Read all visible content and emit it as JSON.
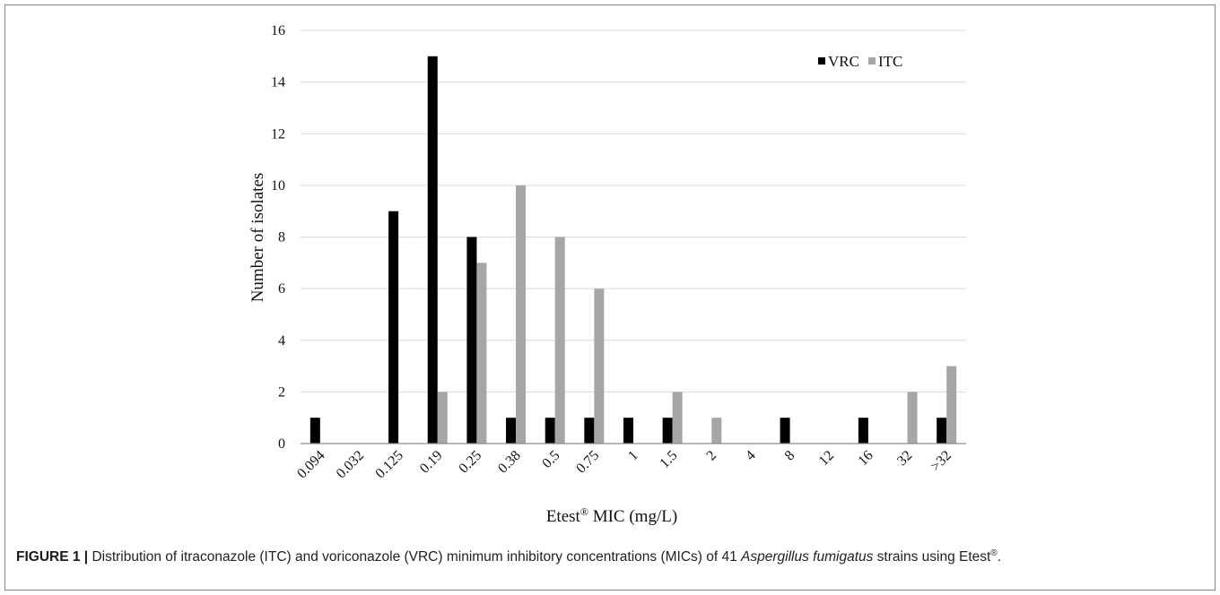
{
  "chart_data": {
    "type": "bar",
    "categories": [
      "0.094",
      "0.032",
      "0.125",
      "0.19",
      "0.25",
      "0.38",
      "0.5",
      "0.75",
      "1",
      "1.5",
      "2",
      "4",
      "8",
      "12",
      "16",
      "32",
      ">32"
    ],
    "series": [
      {
        "name": "VRC",
        "color": "#000000",
        "values": [
          1,
          0,
          9,
          15,
          8,
          1,
          1,
          1,
          1,
          1,
          0,
          0,
          1,
          0,
          1,
          0,
          1
        ]
      },
      {
        "name": "ITC",
        "color": "#a6a6a6",
        "values": [
          0,
          0,
          0,
          2,
          7,
          10,
          8,
          6,
          0,
          2,
          1,
          0,
          0,
          0,
          0,
          2,
          3
        ]
      }
    ],
    "xlabel_main": "Etest",
    "xlabel_sup": "®",
    "xlabel_rest": " MIC (mg/L)",
    "ylabel": "Number of isolates",
    "ylim": [
      0,
      16
    ],
    "yticks": [
      0,
      2,
      4,
      6,
      8,
      10,
      12,
      14,
      16
    ],
    "grid": true,
    "legend_position": "top-right",
    "gridline_color": "#d9d9d9",
    "axis_color": "#8c8c8c"
  },
  "caption": {
    "label": "FIGURE 1",
    "separator": "|",
    "text_before": " Distribution of itraconazole (ITC) and voriconazole (VRC) minimum inhibitory concentrations (MICs) of 41 ",
    "species": "Aspergillus fumigatus",
    "text_after": " strains using Etest",
    "mark": "®",
    "end": "."
  }
}
